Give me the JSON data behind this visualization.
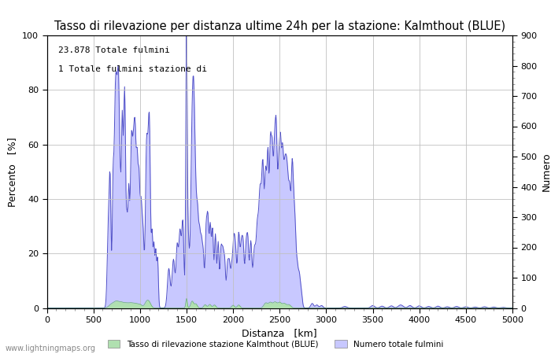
{
  "title": "Tasso di rilevazione per distanza ultime 24h per la stazione: Kalmthout (BLUE)",
  "xlabel": "Distanza   [km]",
  "ylabel_left": "Percento   [%]",
  "ylabel_right": "Numero",
  "annotation_line1": "23.878 Totale fulmini",
  "annotation_line2": "1 Totale fulmini stazione di",
  "watermark": "www.lightningmaps.org",
  "xlim": [
    0,
    5000
  ],
  "ylim_left": [
    0,
    100
  ],
  "ylim_right": [
    0,
    900
  ],
  "xticks": [
    0,
    500,
    1000,
    1500,
    2000,
    2500,
    3000,
    3500,
    4000,
    4500,
    5000
  ],
  "yticks_left": [
    0,
    20,
    40,
    60,
    80,
    100
  ],
  "yticks_right": [
    0,
    100,
    200,
    300,
    400,
    500,
    600,
    700,
    800,
    900
  ],
  "legend_label_green": "Tasso di rilevazione stazione Kalmthout (BLUE)",
  "legend_label_blue": "Numero totale fulmini",
  "fill_color_blue": "#c8c8ff",
  "fill_color_green": "#b0e0b0",
  "line_color": "#5050c8",
  "background_color": "#ffffff",
  "grid_color": "#c0c0c0",
  "title_fontsize": 10.5,
  "label_fontsize": 9,
  "tick_fontsize": 8,
  "minor_tick_color": "#888888"
}
